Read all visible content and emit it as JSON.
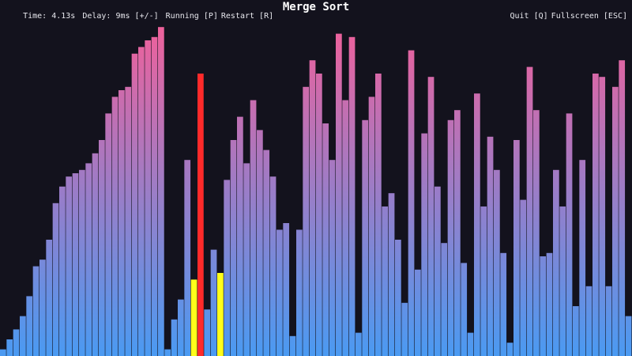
{
  "hud": {
    "time": "Time: 4.13s",
    "delay": "Delay: 9ms [+/-]",
    "status": "Running [P]",
    "restart": "Restart [R]",
    "title": "Merge Sort",
    "quit": "Quit [Q]",
    "fullscreen": "Fullscreen [ESC]"
  },
  "colors": {
    "background": "#13121d",
    "gradient_low": "#4a9af2",
    "gradient_mid": "#9a7cc8",
    "gradient_high": "#f0609a",
    "compare": "#ffff1a",
    "active": "#ff2a2a"
  },
  "chart_data": {
    "type": "bar",
    "max_value": 1.0,
    "values": [
      0.02,
      0.05,
      0.08,
      0.12,
      0.18,
      0.27,
      0.29,
      0.35,
      0.46,
      0.51,
      0.54,
      0.55,
      0.56,
      0.58,
      0.61,
      0.65,
      0.73,
      0.78,
      0.8,
      0.81,
      0.91,
      0.93,
      0.95,
      0.96,
      0.99,
      0.02,
      0.11,
      0.17,
      0.59,
      0.23,
      0.85,
      0.14,
      0.32,
      0.25,
      0.53,
      0.65,
      0.72,
      0.58,
      0.77,
      0.68,
      0.62,
      0.54,
      0.38,
      0.4,
      0.06,
      0.38,
      0.81,
      0.89,
      0.85,
      0.7,
      0.59,
      0.97,
      0.77,
      0.96,
      0.07,
      0.71,
      0.78,
      0.85,
      0.45,
      0.49,
      0.35,
      0.16,
      0.92,
      0.26,
      0.67,
      0.84,
      0.51,
      0.34,
      0.71,
      0.74,
      0.28,
      0.07,
      0.79,
      0.45,
      0.66,
      0.56,
      0.31,
      0.04,
      0.65,
      0.47,
      0.87,
      0.74,
      0.3,
      0.31,
      0.56,
      0.45,
      0.73,
      0.15,
      0.59,
      0.21,
      0.85,
      0.84,
      0.21,
      0.81,
      0.89,
      0.12
    ],
    "highlights": {
      "compare": [
        29,
        33
      ],
      "active": [
        30
      ]
    }
  }
}
